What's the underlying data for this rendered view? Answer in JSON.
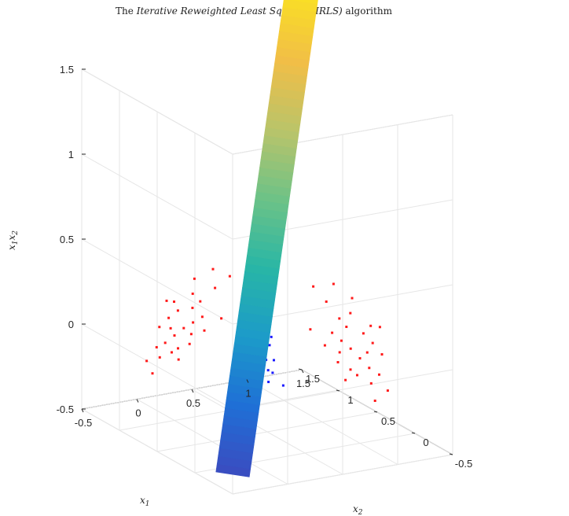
{
  "chart_data": {
    "type": "scatter",
    "title_prefix": "The ",
    "title_emph": "Iterative Reweighted Least Squares (IRLS)",
    "title_suffix": " algorithm",
    "xlabel": "x",
    "xlabel_sub": "1",
    "ylabel": "x",
    "ylabel_sub": "2",
    "zlabel_a": "x",
    "zlabel_sub_a": "1",
    "zlabel_b": "x",
    "zlabel_sub_b": "2",
    "xlim": [
      -0.5,
      1.5
    ],
    "ylim": [
      -0.5,
      1.5
    ],
    "zlim": [
      -0.5,
      1.5
    ],
    "x_ticks": [
      "-0.5",
      "0",
      "0.5",
      "1",
      "1.5"
    ],
    "y_ticks": [
      "-0.5",
      "0",
      "0.5",
      "1",
      "1.5"
    ],
    "z_ticks": [
      "-0.5",
      "0",
      "0.5",
      "1",
      "1.5"
    ],
    "grid": true,
    "surface": {
      "description_of_plane": "decision surface z = 0.14 + 0.54*x1 + 0.51*x2",
      "colormap": [
        "#3b4cc0",
        "#1f6fd6",
        "#1c9bc9",
        "#28b6a6",
        "#6cc287",
        "#b9c46a",
        "#f1be47",
        "#f9e024"
      ]
    },
    "series": [
      {
        "color": "#1a1aff",
        "points": [
          [
            1.0,
            1.0,
            1.0
          ],
          [
            1.02,
            0.98,
            1.0
          ],
          [
            1.05,
            1.0,
            1.05
          ],
          [
            0.96,
            1.02,
            0.98
          ],
          [
            1.08,
            1.03,
            1.11
          ],
          [
            0.93,
            0.97,
            0.9
          ],
          [
            1.1,
            1.08,
            1.19
          ],
          [
            0.9,
            0.92,
            0.83
          ],
          [
            1.12,
            1.12,
            1.25
          ],
          [
            0.97,
            0.95,
            0.92
          ],
          [
            1.03,
            1.07,
            1.1
          ],
          [
            1.15,
            1.1,
            1.27
          ],
          [
            0.88,
            0.96,
            0.84
          ],
          [
            1.07,
            0.93,
            1.0
          ],
          [
            1.18,
            1.16,
            1.37
          ],
          [
            0.85,
            0.88,
            0.75
          ],
          [
            1.2,
            1.2,
            1.44
          ],
          [
            0.82,
            0.85,
            0.7
          ],
          [
            1.24,
            1.22,
            1.51
          ],
          [
            0.8,
            0.82,
            0.66
          ],
          [
            1.13,
            1.05,
            1.19
          ],
          [
            0.95,
            1.05,
            1.0
          ],
          [
            1.06,
            1.15,
            1.22
          ],
          [
            1.28,
            1.26,
            1.61
          ],
          [
            0.78,
            0.8,
            0.62
          ],
          [
            0.1,
            0.1,
            0.01
          ],
          [
            0.12,
            0.08,
            0.01
          ],
          [
            0.08,
            0.12,
            0.01
          ],
          [
            0.05,
            0.05,
            0.0
          ],
          [
            0.15,
            0.1,
            0.02
          ],
          [
            0.1,
            0.15,
            0.02
          ],
          [
            0.02,
            0.08,
            0.0
          ],
          [
            0.08,
            0.02,
            0.0
          ],
          [
            0.18,
            0.14,
            0.03
          ],
          [
            0.14,
            0.18,
            0.03
          ],
          [
            0.0,
            0.0,
            0.0
          ],
          [
            0.2,
            0.05,
            0.01
          ],
          [
            0.05,
            0.2,
            0.01
          ],
          [
            -0.05,
            0.05,
            -0.0
          ],
          [
            0.05,
            -0.05,
            -0.0
          ],
          [
            0.22,
            0.2,
            0.04
          ],
          [
            0.25,
            0.15,
            0.04
          ],
          [
            0.15,
            0.25,
            0.04
          ],
          [
            -0.1,
            0.1,
            -0.01
          ],
          [
            0.1,
            -0.1,
            -0.01
          ],
          [
            0.28,
            0.22,
            0.06
          ],
          [
            0.22,
            0.28,
            0.06
          ],
          [
            -0.08,
            -0.02,
            0.0
          ],
          [
            0.3,
            0.3,
            0.09
          ],
          [
            -0.15,
            0.2,
            -0.03
          ],
          [
            0.35,
            0.25,
            0.09
          ],
          [
            0.25,
            0.35,
            0.09
          ],
          [
            0.4,
            0.3,
            0.12
          ],
          [
            0.3,
            0.4,
            0.12
          ],
          [
            -0.2,
            -0.1,
            0.02
          ],
          [
            0.45,
            0.4,
            0.18
          ],
          [
            0.02,
            0.22,
            0.0
          ],
          [
            0.18,
            0.02,
            0.0
          ],
          [
            0.12,
            0.3,
            0.04
          ],
          [
            0.3,
            0.12,
            0.04
          ],
          [
            0.5,
            0.45,
            0.23
          ],
          [
            0.45,
            0.5,
            0.23
          ]
        ]
      },
      {
        "color": "#ff1a1a",
        "points": [
          [
            1.0,
            0.0,
            0.0
          ],
          [
            0.95,
            0.05,
            0.05
          ],
          [
            1.05,
            -0.05,
            -0.05
          ],
          [
            0.9,
            0.1,
            0.09
          ],
          [
            1.1,
            0.1,
            0.11
          ],
          [
            0.92,
            -0.08,
            -0.07
          ],
          [
            1.08,
            0.02,
            0.02
          ],
          [
            0.85,
            0.05,
            0.04
          ],
          [
            1.15,
            0.05,
            0.06
          ],
          [
            0.98,
            0.15,
            0.15
          ],
          [
            1.02,
            -0.12,
            -0.12
          ],
          [
            0.88,
            -0.05,
            -0.04
          ],
          [
            1.12,
            -0.08,
            -0.09
          ],
          [
            0.8,
            0.0,
            0.0
          ],
          [
            1.2,
            0.0,
            0.0
          ],
          [
            0.95,
            0.2,
            0.19
          ],
          [
            1.05,
            0.2,
            0.21
          ],
          [
            0.75,
            0.1,
            0.08
          ],
          [
            1.25,
            0.1,
            0.13
          ],
          [
            1.0,
            -0.2,
            -0.2
          ],
          [
            0.0,
            1.0,
            0.0
          ],
          [
            0.05,
            0.95,
            0.05
          ],
          [
            -0.05,
            1.05,
            -0.05
          ],
          [
            0.1,
            0.9,
            0.09
          ],
          [
            0.1,
            1.1,
            0.11
          ],
          [
            -0.08,
            0.92,
            -0.07
          ],
          [
            0.02,
            1.08,
            0.02
          ],
          [
            0.05,
            0.85,
            0.04
          ],
          [
            0.05,
            1.15,
            0.06
          ],
          [
            0.15,
            0.98,
            0.15
          ],
          [
            -0.12,
            1.02,
            -0.12
          ],
          [
            -0.05,
            0.88,
            -0.04
          ],
          [
            -0.08,
            1.12,
            -0.09
          ],
          [
            0.0,
            0.8,
            0.0
          ],
          [
            0.0,
            1.2,
            0.0
          ],
          [
            0.2,
            0.95,
            0.19
          ],
          [
            0.2,
            1.05,
            0.21
          ],
          [
            0.1,
            0.75,
            0.08
          ],
          [
            0.1,
            1.25,
            0.13
          ],
          [
            -0.2,
            1.0,
            -0.2
          ],
          [
            0.15,
            0.85,
            0.13
          ],
          [
            0.85,
            0.15,
            0.13
          ],
          [
            0.12,
            1.18,
            0.14
          ],
          [
            1.18,
            0.12,
            0.14
          ],
          [
            -0.1,
            0.8,
            -0.08
          ],
          [
            0.8,
            -0.1,
            -0.08
          ],
          [
            0.25,
            1.1,
            0.28
          ],
          [
            1.1,
            0.25,
            0.28
          ],
          [
            0.3,
            0.9,
            0.27
          ],
          [
            0.9,
            0.3,
            0.27
          ],
          [
            -0.15,
            1.15,
            -0.17
          ],
          [
            1.15,
            -0.15,
            -0.17
          ],
          [
            0.22,
            0.7,
            0.15
          ],
          [
            0.7,
            0.22,
            0.15
          ],
          [
            0.35,
            1.0,
            0.35
          ],
          [
            1.0,
            0.35,
            0.35
          ],
          [
            0.4,
            0.85,
            0.34
          ],
          [
            0.85,
            0.4,
            0.34
          ]
        ]
      }
    ]
  }
}
